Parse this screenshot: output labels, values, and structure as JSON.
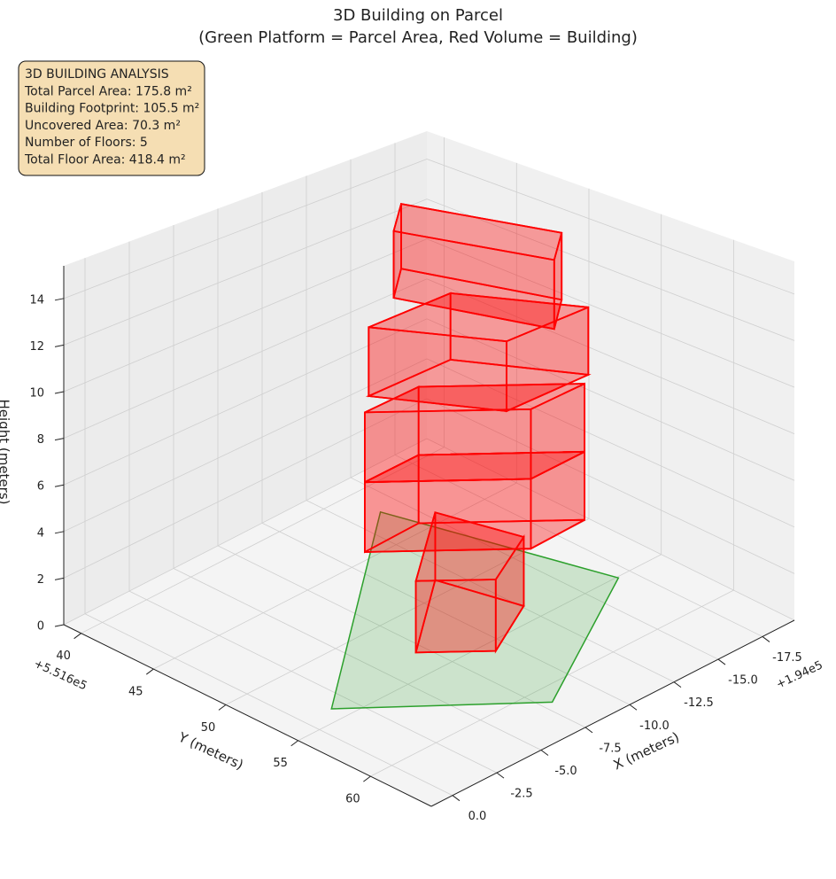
{
  "chart_data": {
    "type": "3d",
    "title": [
      "3D Building on Parcel",
      "(Green Platform = Parcel Area, Red Volume = Building)"
    ],
    "annotation": [
      "3D BUILDING ANALYSIS",
      "Total Parcel Area: 175.8 m²",
      "Building Footprint: 105.5 m²",
      "Uncovered Area: 70.3 m²",
      "Number of Floors: 5",
      "Total Floor Area: 418.4 m²"
    ],
    "xlabel": "X (meters)",
    "ylabel": "Y (meters)",
    "zlabel": "Height (meters)",
    "xoffset": "+1.94e5",
    "yoffset": "+5.516e5",
    "xlim": [
      -19.3,
      1.2
    ],
    "ylim": [
      38.8,
      64.2
    ],
    "zlim": [
      0,
      15.4
    ],
    "xticks": [
      {
        "value": 0,
        "label": "0.0"
      },
      -2.5,
      {
        "value": -5,
        "label": "-5.0"
      },
      -7.5,
      {
        "value": -10,
        "label": "-10.0"
      },
      -12.5,
      {
        "value": -15,
        "label": "-15.0"
      },
      -17.5
    ],
    "yticks": [
      40,
      45,
      50,
      55,
      60
    ],
    "zticks": [
      0,
      2,
      4,
      6,
      8,
      10,
      12,
      14
    ],
    "grid": true,
    "parcel": {
      "color": "#2ca02c",
      "vertices": [
        [
          -13.9,
          42.2
        ],
        [
          -16.8,
          55.1
        ],
        [
          -8.0,
          61.3
        ],
        [
          -1.5,
          54.0
        ]
      ]
    },
    "building_color": "#ff0000",
    "floors": [
      {
        "z": [
          0,
          3
        ],
        "footprint": [
          [
            -7.0,
            53.1
          ],
          [
            -9.3,
            55.8
          ],
          [
            -12.6,
            53.7
          ],
          [
            -11.6,
            48.8
          ]
        ]
      },
      {
        "z": [
          3,
          6
        ],
        "footprint": [
          [
            -7.3,
            49.2
          ],
          [
            -12.1,
            54.8
          ],
          [
            -15.3,
            54.6
          ],
          [
            -10.5,
            49.0
          ]
        ]
      },
      {
        "z": [
          6,
          9
        ],
        "footprint": [
          [
            -7.3,
            49.2
          ],
          [
            -12.1,
            54.8
          ],
          [
            -15.3,
            54.6
          ],
          [
            -10.5,
            49.0
          ]
        ]
      },
      {
        "z": [
          9,
          12
        ],
        "footprint": [
          [
            -8.5,
            48.0
          ],
          [
            -11.3,
            54.1
          ],
          [
            -16.0,
            54.0
          ],
          [
            -13.2,
            47.9
          ]
        ]
      },
      {
        "z": [
          12,
          15
        ],
        "footprint": [
          [
            -11.3,
            46.3
          ],
          [
            -13.5,
            54.7
          ],
          [
            -15.8,
            52.4
          ],
          [
            -13.6,
            44.0
          ]
        ]
      }
    ]
  }
}
